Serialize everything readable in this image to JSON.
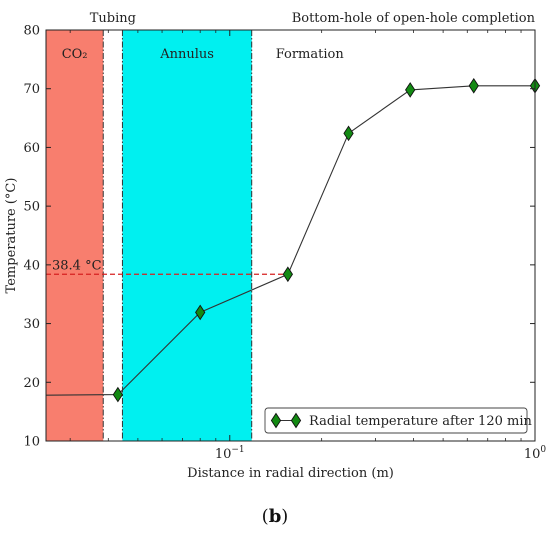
{
  "chart_data": {
    "type": "line",
    "x_scale": "log",
    "xlim": [
      0.025,
      1.0
    ],
    "ylim": [
      10,
      80
    ],
    "xlabel": "Distance in radial direction (m)",
    "ylabel": "Temperature (°C)",
    "x_ticks": [
      {
        "value": 0.1,
        "label": "10",
        "exp": "−1"
      },
      {
        "value": 1.0,
        "label": "10",
        "exp": "0"
      }
    ],
    "y_ticks": [
      10,
      20,
      30,
      40,
      50,
      60,
      70,
      80
    ],
    "regions": [
      {
        "name": "CO₂",
        "x0": 0.025,
        "x1": 0.0385,
        "color": "#f87e6e"
      },
      {
        "name": "Annulus",
        "x0": 0.0445,
        "x1": 0.118,
        "color": "#00f0f0"
      }
    ],
    "region_boundaries": [
      0.0385,
      0.0445,
      0.118
    ],
    "top_labels": {
      "tubing": "Tubing",
      "completion": "Bottom-hole of open-hole completion",
      "formation": "Formation"
    },
    "series": [
      {
        "name": "Radial temperature after 120 min",
        "color": "#333333",
        "marker_color": "#138a13",
        "x": [
          0.025,
          0.043,
          0.08,
          0.155,
          0.245,
          0.39,
          0.63,
          1.0
        ],
        "y": [
          17.8,
          17.9,
          31.9,
          38.4,
          62.4,
          69.8,
          70.5,
          70.5
        ],
        "markers": [
          false,
          true,
          true,
          true,
          true,
          true,
          true,
          true
        ]
      }
    ],
    "annotation": {
      "text": "38.4 °C",
      "x": 0.155,
      "y": 38.4,
      "color": "#d62020"
    },
    "legend_position": "lower-right"
  },
  "caption": {
    "letter": "b"
  }
}
